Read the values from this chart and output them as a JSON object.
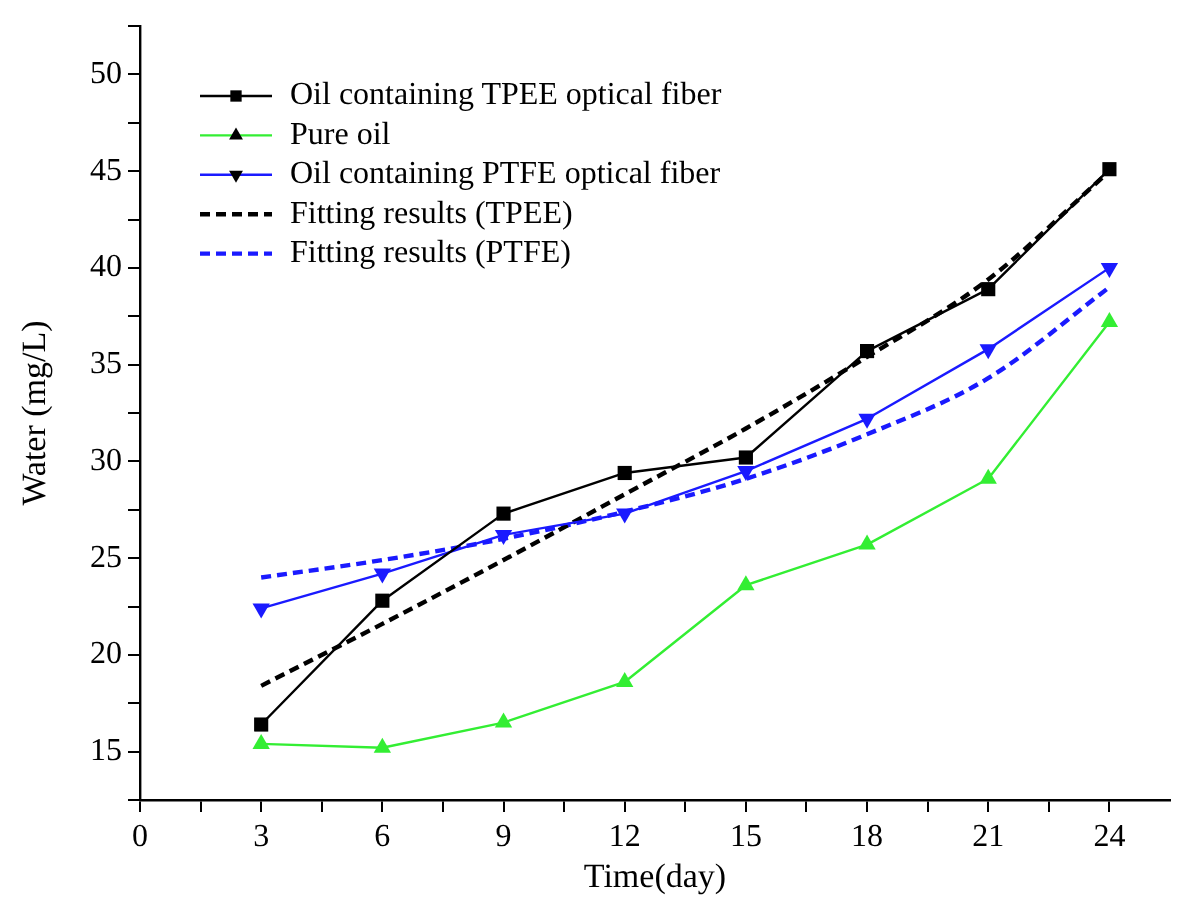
{
  "chart_data": {
    "type": "line",
    "xlabel": "Time(day)",
    "ylabel": "Water (mg/L)",
    "legend": "top left",
    "grid": false,
    "x": [
      3,
      6,
      9,
      12,
      15,
      18,
      21,
      24
    ],
    "xlim": [
      0,
      25.5
    ],
    "xticks": [
      0,
      {
        "value": 1.5,
        "label": null
      },
      3,
      {
        "value": 4.5,
        "label": null
      },
      6,
      {
        "value": 7.5,
        "label": null
      },
      9,
      {
        "value": 10.5,
        "label": null
      },
      12,
      {
        "value": 13.5,
        "label": null
      },
      15,
      {
        "value": 16.5,
        "label": null
      },
      18,
      {
        "value": 19.5,
        "label": null
      },
      21,
      {
        "value": 22.5,
        "label": null
      },
      24
    ],
    "ylim": [
      12.5,
      52.5
    ],
    "yticks": [
      {
        "value": 12.5,
        "label": null
      },
      15,
      {
        "value": 17.5,
        "label": null
      },
      20,
      {
        "value": 22.5,
        "label": null
      },
      25,
      {
        "value": 27.5,
        "label": null
      },
      30,
      {
        "value": 32.5,
        "label": null
      },
      35,
      {
        "value": 37.5,
        "label": null
      },
      40,
      {
        "value": 42.5,
        "label": null
      },
      45,
      {
        "value": 47.5,
        "label": null
      },
      50,
      {
        "value": 52.5,
        "label": null
      }
    ],
    "series": [
      {
        "name": "Oil containing TPEE optical fiber",
        "color": "#000000",
        "marker": "square",
        "line_style": "solid",
        "values": [
          16.4,
          22.8,
          27.3,
          29.4,
          30.2,
          35.7,
          38.9,
          45.1
        ]
      },
      {
        "name": "Pure oil",
        "color": "#33ee33",
        "marker": "triangle",
        "line_style": "solid",
        "values": [
          15.4,
          15.2,
          16.5,
          18.6,
          23.6,
          25.7,
          29.1,
          37.2
        ]
      },
      {
        "name": "Oil containing PTFE optical fiber",
        "color": "#1a1aff",
        "marker": "triangle-down",
        "line_style": "solid",
        "values": [
          22.4,
          24.2,
          26.2,
          27.3,
          29.5,
          32.2,
          35.8,
          40.0
        ]
      },
      {
        "name": "Fitting results (TPEE)",
        "color": "#000000",
        "marker": "none",
        "line_style": "dashed",
        "values": [
          18.4,
          21.6,
          24.9,
          28.3,
          31.7,
          35.4,
          39.4,
          45.0
        ]
      },
      {
        "name": "Fitting results (PTFE)",
        "color": "#1a1aff",
        "marker": "none",
        "line_style": "dashed",
        "values": [
          24.0,
          24.9,
          26.0,
          27.4,
          29.1,
          31.4,
          34.3,
          39.0
        ]
      }
    ]
  }
}
